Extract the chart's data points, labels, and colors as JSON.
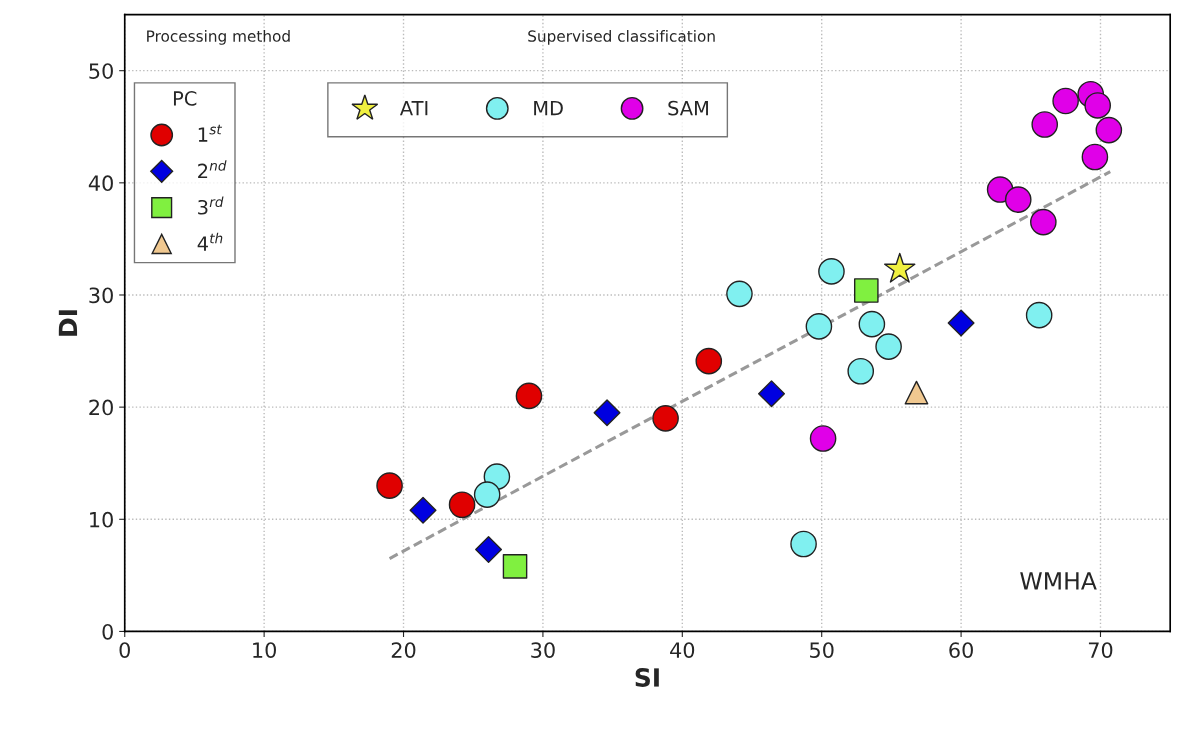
{
  "chart_data": {
    "type": "scatter",
    "xlabel": "SI",
    "ylabel": "DI",
    "xlim": [
      0,
      75
    ],
    "ylim": [
      0,
      55
    ],
    "xticks": [
      0,
      10,
      20,
      30,
      40,
      50,
      60,
      70
    ],
    "yticks": [
      0,
      10,
      20,
      30,
      40,
      50
    ],
    "grid": true,
    "legend": "top left",
    "legend_title": "PC",
    "annotations": [
      "Processing method",
      "Supervised classification",
      "WMHA"
    ],
    "series": [
      {
        "name": "1$^{st}$",
        "color": "#e00000",
        "marker": "circle",
        "x": [
          19.0,
          24.2,
          29.0,
          38.8,
          41.9
        ],
        "values": [
          13.0,
          11.3,
          21.0,
          19.0,
          24.1
        ]
      },
      {
        "name": "2$^{nd}$",
        "color": "#0000e0",
        "marker": "diamond",
        "x": [
          21.4,
          26.1,
          34.6,
          46.4,
          60.0
        ],
        "values": [
          10.8,
          7.3,
          19.5,
          21.2,
          27.5
        ]
      },
      {
        "name": "3$^{rd}$",
        "color": "#80f040",
        "marker": "square",
        "x": [
          28.0,
          53.2
        ],
        "values": [
          5.8,
          30.4
        ]
      },
      {
        "name": "4$^{th}$",
        "color": "#f0c890",
        "marker": "triangle",
        "x": [
          56.8
        ],
        "values": [
          21.3
        ]
      },
      {
        "name": "ATI",
        "color": "#f0f040",
        "marker": "star",
        "x": [
          55.6
        ],
        "values": [
          32.3
        ]
      },
      {
        "name": "MD",
        "color": "#80f0f0",
        "marker": "circle",
        "x": [
          26.7,
          26.0,
          44.1,
          50.7,
          49.8,
          53.6,
          54.8,
          52.8,
          65.6,
          48.7
        ],
        "values": [
          13.8,
          12.2,
          30.1,
          32.1,
          27.2,
          27.4,
          25.4,
          23.2,
          28.2,
          7.8
        ]
      },
      {
        "name": "SAM",
        "color": "#e000e8",
        "marker": "circle",
        "x": [
          50.1,
          62.8,
          64.1,
          65.9,
          66.0,
          67.5,
          69.3,
          69.8,
          70.6,
          69.6
        ],
        "values": [
          17.2,
          39.4,
          38.5,
          36.5,
          45.2,
          47.3,
          47.9,
          46.9,
          44.7,
          42.3
        ]
      },
      {
        "type": "line",
        "color": "#999999",
        "line_style": "dashed",
        "x": [
          19.0,
          70.7
        ],
        "values": [
          6.5,
          41.0
        ]
      }
    ]
  }
}
